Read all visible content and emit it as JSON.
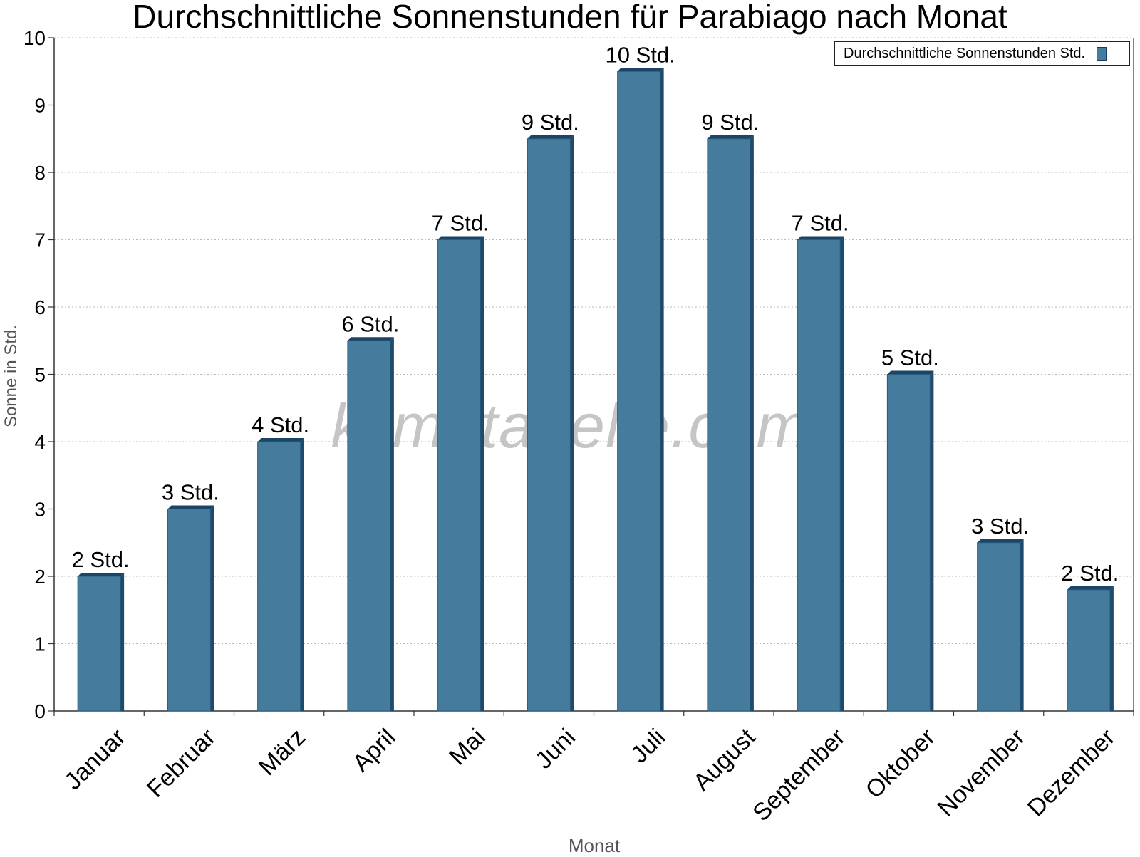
{
  "chart_data": {
    "type": "bar",
    "title": "Durchschnittliche Sonnenstunden für Parabiago nach Monat",
    "xlabel": "Monat",
    "ylabel": "Sonne in Std.",
    "ylim": [
      0,
      10
    ],
    "yticks": [
      "0",
      "1",
      "2",
      "3",
      "4",
      "5",
      "6",
      "7",
      "8",
      "9",
      "10"
    ],
    "grid": true,
    "legend_position": "top-right",
    "watermark": "klimatabelle.com",
    "categories": [
      "Januar",
      "Februar",
      "März",
      "April",
      "Mai",
      "Juni",
      "Juli",
      "August",
      "September",
      "Oktober",
      "November",
      "Dezember"
    ],
    "series": [
      {
        "name": "Durchschnittliche Sonnenstunden Std.",
        "color": "#457b9d",
        "values": [
          2,
          3,
          4,
          5.5,
          7,
          8.5,
          9.5,
          8.5,
          7,
          5,
          2.5,
          1.8
        ],
        "labels": [
          "2 Std.",
          "3 Std.",
          "4 Std.",
          "6 Std.",
          "7 Std.",
          "9 Std.",
          "10 Std.",
          "9 Std.",
          "7 Std.",
          "5 Std.",
          "3 Std.",
          "2 Std."
        ]
      }
    ]
  }
}
